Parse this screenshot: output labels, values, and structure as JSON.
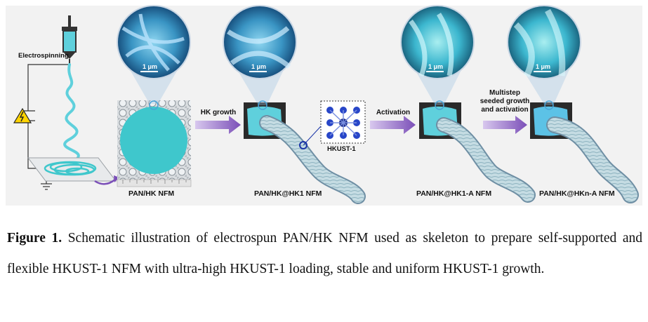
{
  "figure": {
    "electrospinning_label": "Electrospinning",
    "scale_bar_label": "1 μm",
    "stage_labels": {
      "pan_hk": "PAN/HK NFM",
      "pan_hk_hk1": "PAN/HK@HK1 NFM",
      "pan_hk_hk1_a": "PAN/HK@HK1-A NFM",
      "pan_hk_hkn_a": "PAN/HK@HKn-A NFM"
    },
    "arrow_labels": {
      "hk_growth": "HK growth",
      "activation": "Activation",
      "multistep_line1": "Multistep",
      "multistep_line2": "seeded growth",
      "multistep_line3": "and activation"
    },
    "mof_label": "HKUST-1",
    "colors": {
      "accent_purple": "#7b4fb8",
      "fiber_blue": "#5fd0dc",
      "membrane_cyan": "#3fc7cc",
      "panel_bg": "#f2f2f2"
    }
  },
  "caption": {
    "figure_number": "Figure 1.",
    "text": " Schematic illustration of electrospun PAN/HK NFM used as skeleton to prepare self-supported and flexible HKUST-1 NFM with ultra-high HKUST-1 loading, stable and uniform HKUST-1 growth."
  }
}
